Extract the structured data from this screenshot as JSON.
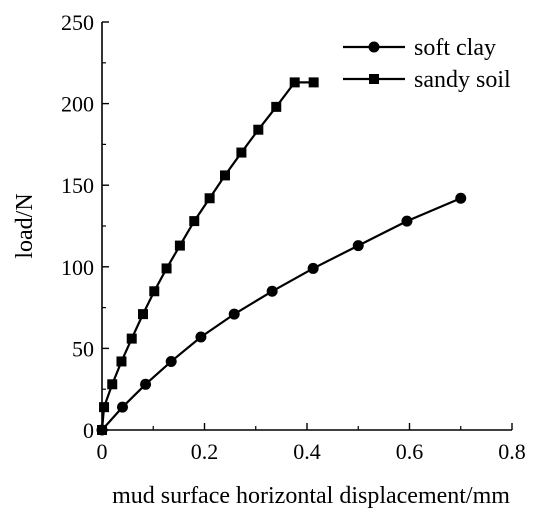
{
  "chart_data": {
    "type": "line",
    "xlabel": "mud surface horizontal displacement/mm",
    "ylabel": "load/N",
    "xlim": [
      0,
      0.8
    ],
    "ylim": [
      0,
      250
    ],
    "x_ticks": [
      0,
      0.2,
      0.4,
      0.6,
      0.8
    ],
    "x_tick_labels": [
      "0",
      "0.2",
      "0.4",
      "0.6",
      "0.8"
    ],
    "y_ticks": [
      0,
      50,
      100,
      150,
      200,
      250
    ],
    "y_tick_labels": [
      "0",
      "50",
      "100",
      "150",
      "200",
      "250"
    ],
    "grid": false,
    "legend_position": "top-right",
    "series": [
      {
        "name": "soft clay",
        "marker": "circle",
        "color": "#000000",
        "x": [
          0,
          0.04,
          0.085,
          0.135,
          0.193,
          0.258,
          0.332,
          0.412,
          0.5,
          0.595,
          0.7
        ],
        "y": [
          0,
          14,
          28,
          42,
          57,
          71,
          85,
          99,
          113,
          128,
          142
        ]
      },
      {
        "name": "sandy soil",
        "marker": "square",
        "color": "#000000",
        "x": [
          0,
          0.004,
          0.02,
          0.038,
          0.058,
          0.08,
          0.102,
          0.126,
          0.152,
          0.18,
          0.21,
          0.24,
          0.272,
          0.305,
          0.34,
          0.376,
          0.413
        ],
        "y": [
          0,
          14,
          28,
          42,
          56,
          71,
          85,
          99,
          113,
          128,
          142,
          156,
          170,
          184,
          198,
          213,
          213
        ]
      }
    ]
  }
}
